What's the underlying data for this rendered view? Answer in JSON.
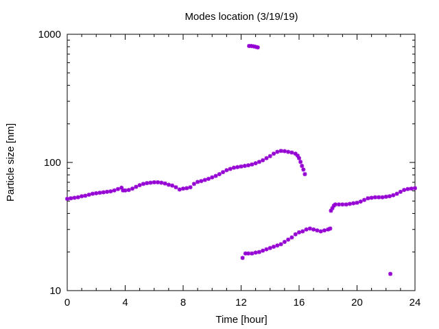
{
  "chart_data": {
    "type": "scatter",
    "title": "Modes location (3/19/19)",
    "xlabel": "Time [hour]",
    "ylabel": "Particle size [nm]",
    "xlim": [
      0,
      24
    ],
    "ylim": [
      10,
      1000
    ],
    "yscale": "log",
    "x_ticks": [
      0,
      4,
      8,
      12,
      16,
      20,
      24
    ],
    "y_ticks": [
      10,
      100,
      1000
    ],
    "x_tick_labels": [
      "0",
      "4",
      "8",
      "12",
      "16",
      "20",
      "24"
    ],
    "y_tick_labels": [
      "10",
      "100",
      "1000"
    ],
    "marker_color": "#9400d3",
    "grid": false,
    "legend": "none",
    "series": [
      {
        "points": [
          [
            0.0,
            52
          ],
          [
            0.25,
            52.5
          ],
          [
            0.5,
            53
          ],
          [
            0.75,
            53.5
          ],
          [
            1.0,
            54.5
          ],
          [
            1.25,
            55
          ],
          [
            1.5,
            56
          ],
          [
            1.75,
            57
          ],
          [
            2.0,
            57.5
          ],
          [
            2.25,
            58
          ],
          [
            2.5,
            58.5
          ],
          [
            2.75,
            59
          ],
          [
            3.0,
            59.5
          ],
          [
            3.25,
            60.5
          ],
          [
            3.5,
            62
          ],
          [
            3.75,
            63.5
          ],
          [
            3.85,
            60.5
          ],
          [
            4.0,
            60.5
          ],
          [
            4.25,
            61
          ],
          [
            4.5,
            62.5
          ],
          [
            4.75,
            64.5
          ],
          [
            5.0,
            66.5
          ],
          [
            5.25,
            68
          ],
          [
            5.5,
            69
          ],
          [
            5.75,
            69.5
          ],
          [
            6.0,
            70
          ],
          [
            6.25,
            70
          ],
          [
            6.5,
            69.5
          ],
          [
            6.75,
            68.5
          ],
          [
            7.0,
            67
          ],
          [
            7.25,
            66
          ],
          [
            7.5,
            64
          ],
          [
            7.75,
            61.5
          ],
          [
            8.0,
            62.5
          ],
          [
            8.25,
            63
          ],
          [
            8.5,
            64
          ],
          [
            8.75,
            68
          ],
          [
            9.0,
            70.5
          ],
          [
            9.25,
            71.5
          ],
          [
            9.5,
            73
          ],
          [
            9.75,
            74.5
          ],
          [
            10.0,
            76.5
          ],
          [
            10.25,
            78.5
          ],
          [
            10.5,
            81
          ],
          [
            10.75,
            84
          ],
          [
            11.0,
            87
          ],
          [
            11.25,
            89
          ],
          [
            11.5,
            91
          ],
          [
            11.75,
            92
          ],
          [
            12.0,
            93
          ],
          [
            12.25,
            94
          ],
          [
            12.5,
            95
          ],
          [
            12.75,
            96.5
          ],
          [
            13.0,
            98.5
          ],
          [
            13.25,
            101
          ],
          [
            13.5,
            104
          ],
          [
            13.75,
            108
          ],
          [
            14.0,
            112
          ],
          [
            14.25,
            117
          ],
          [
            14.5,
            121
          ],
          [
            14.75,
            123
          ],
          [
            15.0,
            122.5
          ],
          [
            15.25,
            121
          ],
          [
            15.5,
            119.5
          ],
          [
            15.75,
            117
          ],
          [
            15.9,
            113
          ],
          [
            16.0,
            108
          ],
          [
            16.1,
            101
          ],
          [
            16.2,
            94
          ],
          [
            16.3,
            88
          ],
          [
            16.4,
            81
          ]
        ]
      },
      {
        "points": [
          [
            12.55,
            810
          ],
          [
            12.7,
            810
          ],
          [
            12.85,
            805
          ],
          [
            13.0,
            798
          ],
          [
            13.15,
            790
          ]
        ]
      },
      {
        "points": [
          [
            12.1,
            18
          ],
          [
            12.3,
            19.5
          ],
          [
            12.5,
            19.5
          ],
          [
            12.75,
            19.5
          ],
          [
            13.0,
            19.8
          ],
          [
            13.25,
            20
          ],
          [
            13.5,
            20.5
          ],
          [
            13.75,
            21
          ],
          [
            14.0,
            21.5
          ],
          [
            14.25,
            22
          ],
          [
            14.5,
            22.5
          ],
          [
            14.75,
            23
          ],
          [
            15.0,
            24
          ],
          [
            15.25,
            25
          ],
          [
            15.5,
            26
          ],
          [
            15.75,
            27.5
          ],
          [
            16.0,
            28.5
          ],
          [
            16.25,
            29
          ],
          [
            16.5,
            30
          ],
          [
            16.75,
            30.5
          ],
          [
            17.0,
            30
          ],
          [
            17.25,
            29.5
          ],
          [
            17.5,
            29
          ],
          [
            17.75,
            29.5
          ],
          [
            18.0,
            30
          ],
          [
            18.15,
            30.5
          ],
          [
            18.2,
            42
          ],
          [
            18.3,
            44
          ],
          [
            18.4,
            46
          ],
          [
            18.5,
            47
          ],
          [
            18.75,
            47
          ],
          [
            19.0,
            47
          ],
          [
            19.25,
            47
          ],
          [
            19.5,
            47.5
          ],
          [
            19.75,
            48
          ],
          [
            20.0,
            48.5
          ],
          [
            20.25,
            49.5
          ],
          [
            20.5,
            51
          ],
          [
            20.75,
            52.5
          ],
          [
            21.0,
            53
          ],
          [
            21.25,
            53.5
          ],
          [
            21.5,
            53.5
          ],
          [
            21.75,
            53.5
          ],
          [
            22.0,
            54
          ],
          [
            22.25,
            54.5
          ],
          [
            22.5,
            55.5
          ],
          [
            22.75,
            57
          ],
          [
            23.0,
            59
          ],
          [
            23.25,
            61
          ],
          [
            23.5,
            62
          ],
          [
            23.75,
            62.5
          ],
          [
            24.0,
            63
          ]
        ]
      },
      {
        "points": [
          [
            22.3,
            13.5
          ]
        ]
      }
    ]
  }
}
